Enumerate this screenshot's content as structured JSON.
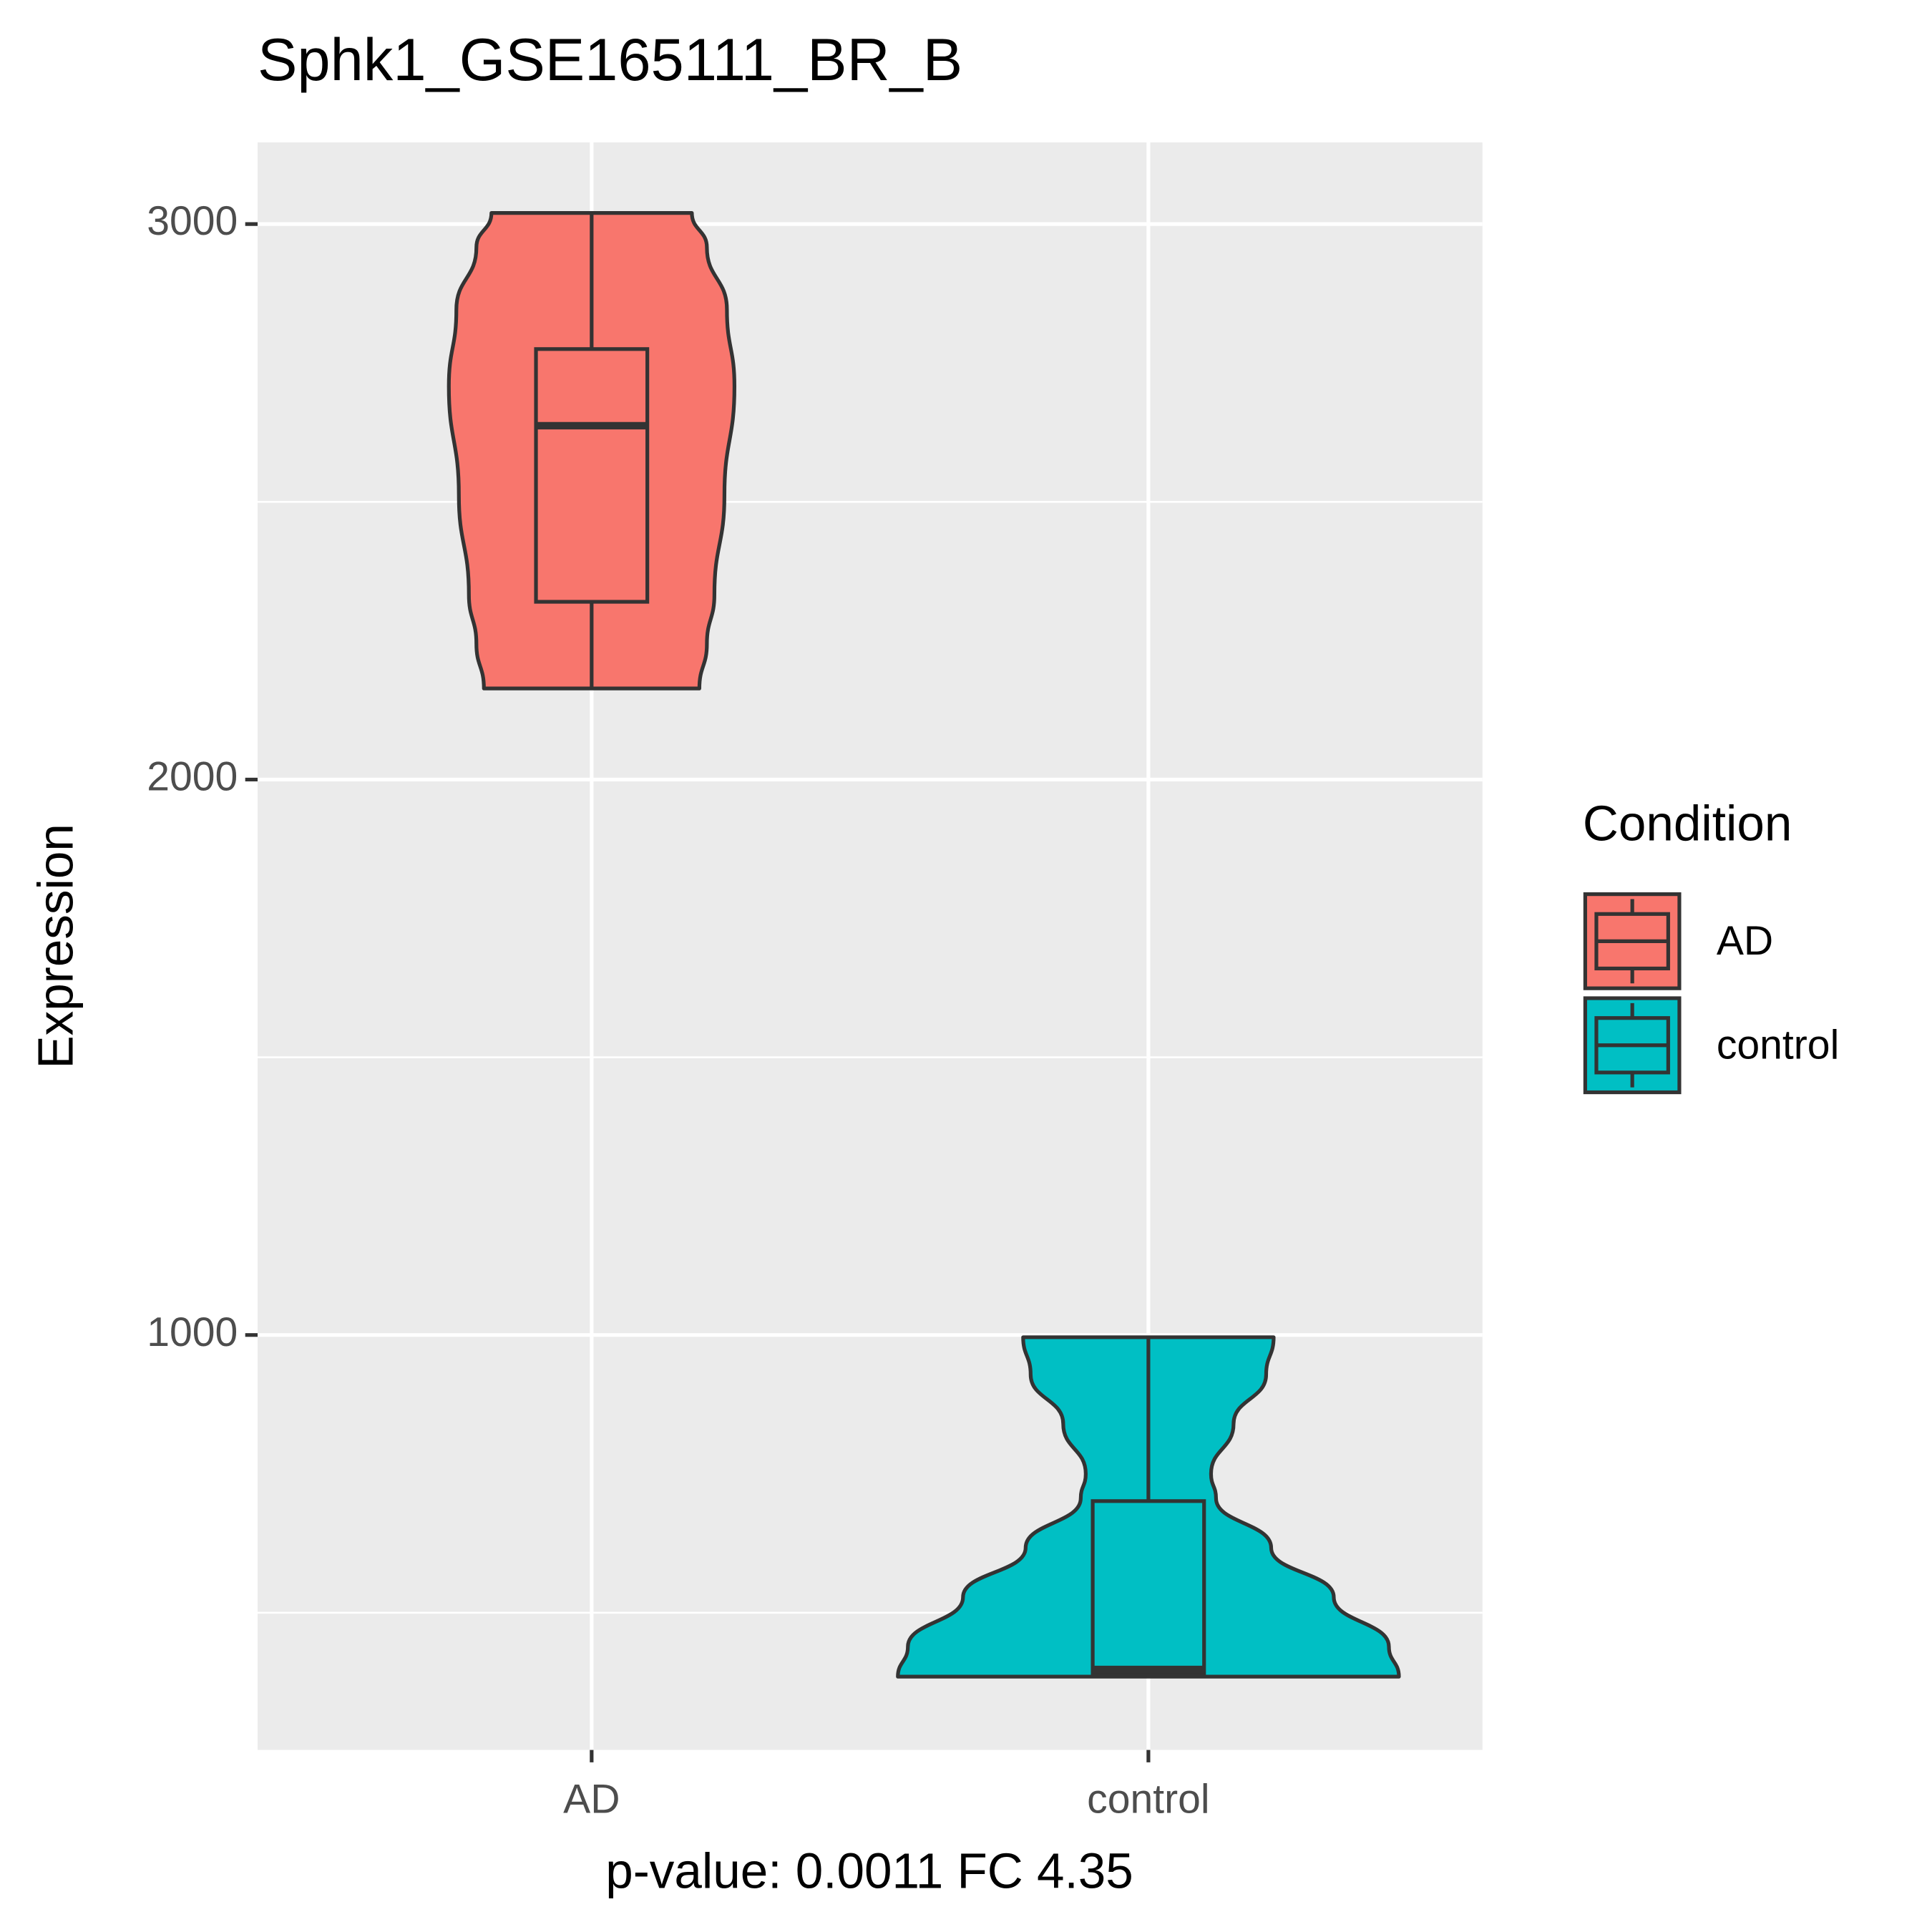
{
  "chart_data": {
    "type": "violin",
    "title": "Sphk1_GSE165111_BR_B",
    "x_label": "p-value: 0.0011 FC 4.35",
    "y_label": "Expression",
    "legend_title": "Condition",
    "categories": [
      "AD",
      "control"
    ],
    "ylim": [
      253,
      3147
    ],
    "yticks": [
      1000,
      2000,
      3000
    ],
    "yminorticks": [
      500,
      1500,
      2500
    ],
    "grid": true,
    "legend": "right",
    "series": [
      {
        "name": "AD",
        "color": "#F8766D",
        "min": 2164,
        "q1": 2320,
        "median": 2637,
        "q3": 2775,
        "max": 3020,
        "density": {
          "y": [
            3020,
            2958,
            2846,
            2708,
            2512,
            2333,
            2244,
            2164
          ],
          "width": [
            0.4,
            0.46,
            0.54,
            0.57,
            0.53,
            0.49,
            0.46,
            0.43
          ]
        }
      },
      {
        "name": "control",
        "color": "#00BFC4",
        "min": 385,
        "q1": 390,
        "median": 398,
        "q3": 701,
        "max": 996,
        "density": {
          "y": [
            996,
            929,
            840,
            750,
            706,
            617,
            528,
            439,
            385
          ],
          "width": [
            0.5,
            0.47,
            0.34,
            0.25,
            0.27,
            0.49,
            0.74,
            0.96,
            1.0
          ]
        }
      }
    ]
  }
}
